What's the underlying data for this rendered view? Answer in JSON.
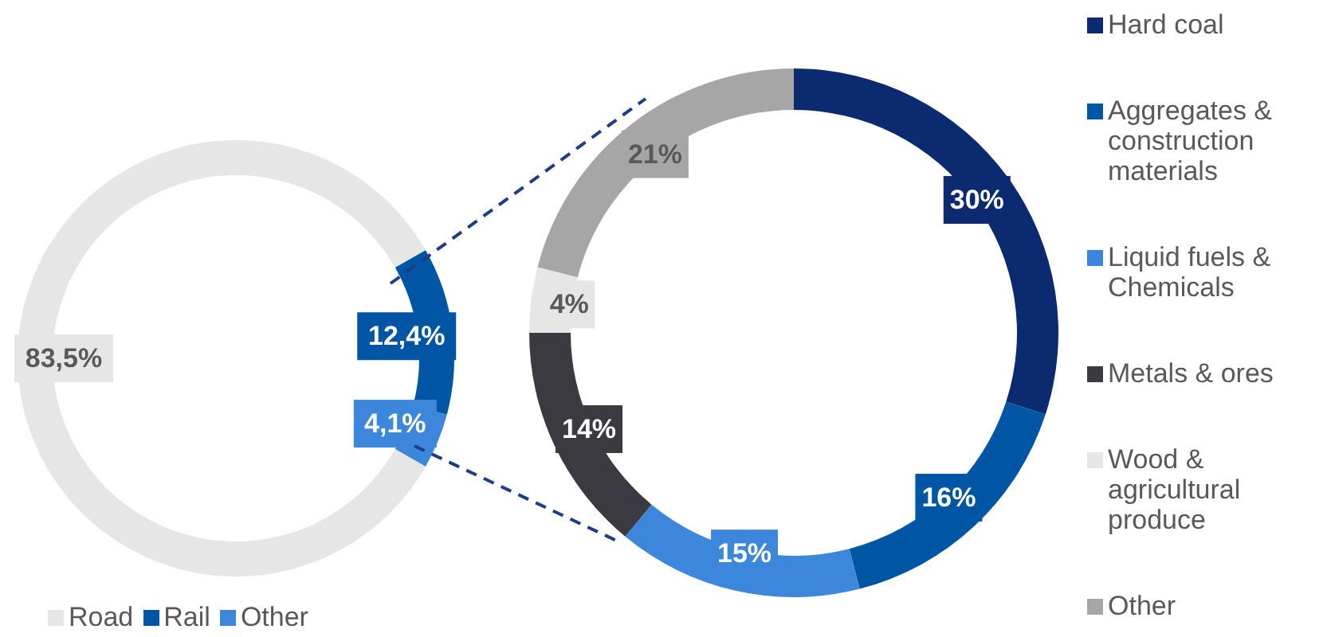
{
  "chart_data": [
    {
      "type": "donut",
      "categories": [
        "Road",
        "Rail",
        "Other"
      ],
      "values": [
        83.5,
        12.4,
        4.1
      ],
      "colors": [
        "#e6e6e6",
        "#0056a4",
        "#3c87db"
      ],
      "value_labels": [
        "83,5%",
        "12,4%",
        "4,1%"
      ],
      "legend": "bottom"
    },
    {
      "type": "donut",
      "categories": [
        "Hard coal",
        "Aggregates & construction materials",
        "Liquid fuels & Chemicals",
        "Metals & ores",
        "Wood & agricultural produce",
        "Other"
      ],
      "values": [
        30,
        16,
        15,
        14,
        4,
        21
      ],
      "colors": [
        "#0b2a70",
        "#0056a4",
        "#3c87db",
        "#3a3a40",
        "#e6e6e6",
        "#a6a6a6"
      ],
      "value_labels": [
        "30%",
        "16%",
        "15%",
        "14%",
        "4%",
        "21%"
      ],
      "legend": "right"
    }
  ]
}
